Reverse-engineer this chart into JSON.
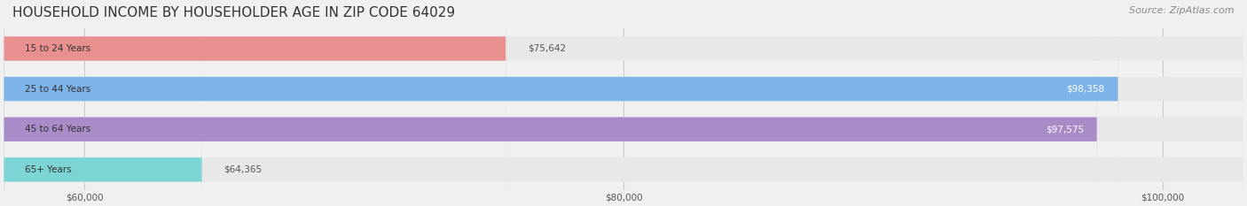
{
  "title": "HOUSEHOLD INCOME BY HOUSEHOLDER AGE IN ZIP CODE 64029",
  "source": "Source: ZipAtlas.com",
  "categories": [
    "15 to 24 Years",
    "25 to 44 Years",
    "45 to 64 Years",
    "65+ Years"
  ],
  "values": [
    75642,
    98358,
    97575,
    64365
  ],
  "bar_colors": [
    "#E89090",
    "#7EB3E8",
    "#A98BC8",
    "#7DD4D4"
  ],
  "bar_labels": [
    "$75,642",
    "$98,358",
    "$97,575",
    "$64,365"
  ],
  "label_colors": [
    "#555555",
    "#ffffff",
    "#ffffff",
    "#555555"
  ],
  "xlim_min": 57000,
  "xlim_max": 103000,
  "xticks": [
    60000,
    80000,
    100000
  ],
  "xtick_labels": [
    "$60,000",
    "$80,000",
    "$100,000"
  ],
  "background_color": "#f0f0f0",
  "bar_background_color": "#e8e8e8",
  "title_fontsize": 11,
  "source_fontsize": 8,
  "bar_height": 0.6,
  "figsize": [
    14.06,
    2.33
  ],
  "dpi": 100
}
